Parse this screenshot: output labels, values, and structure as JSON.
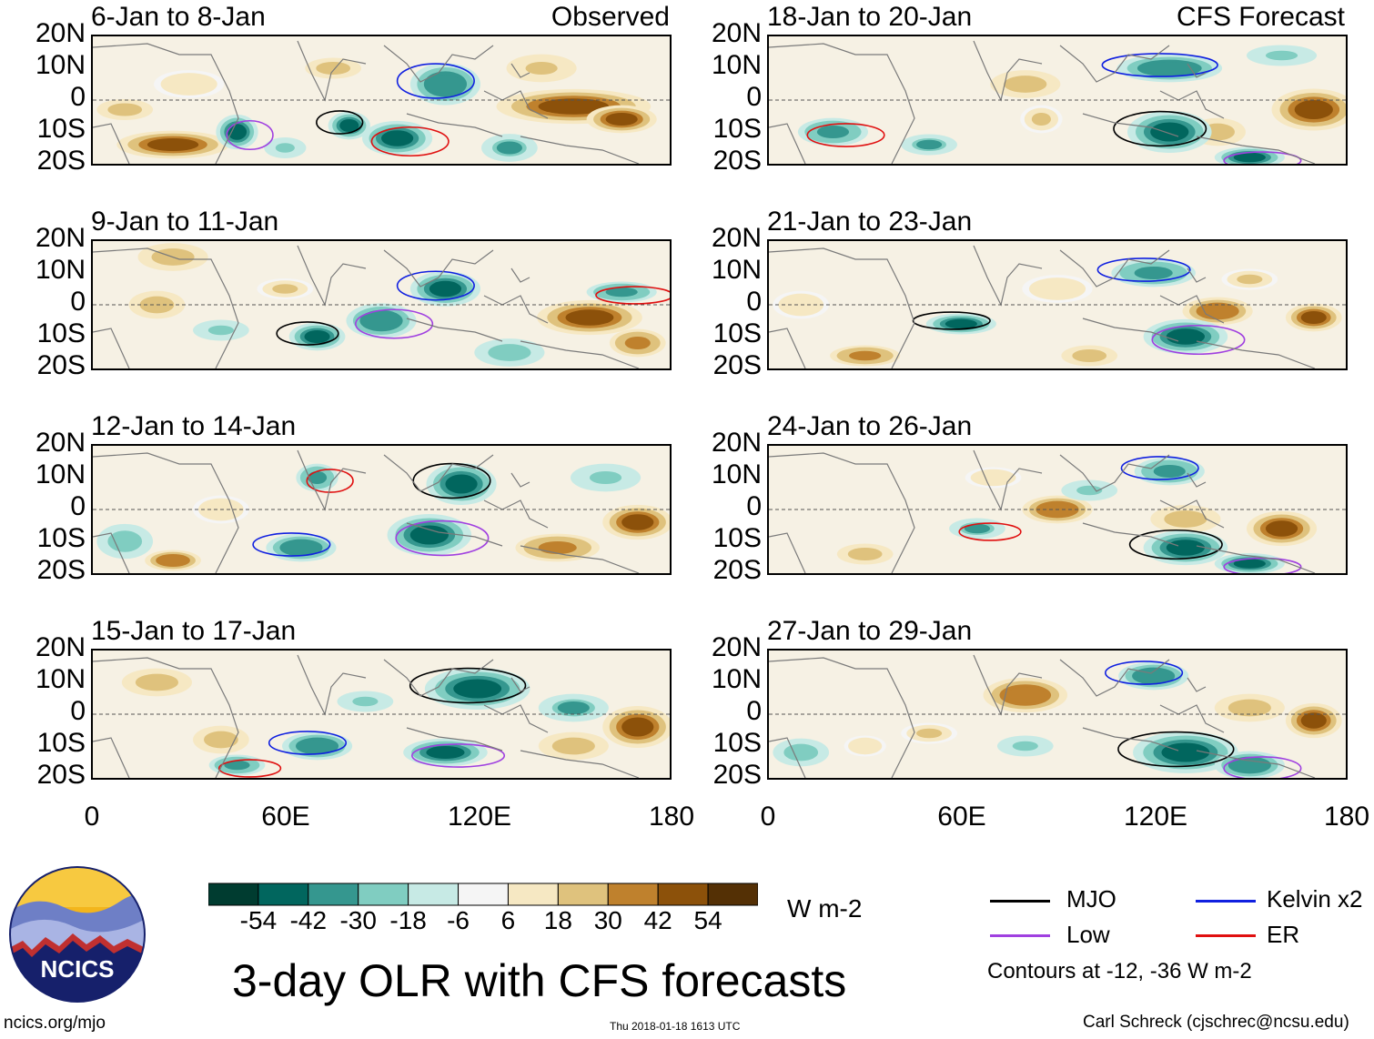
{
  "colors": {
    "mjo": "#000000",
    "low": "#a040e0",
    "kelvin": "#1020e0",
    "er": "#e01010",
    "scale": [
      "#003c30",
      "#01665e",
      "#35978f",
      "#80cdc1",
      "#c7eae5",
      "#f5f5f5",
      "#f6e8c3",
      "#dfc27d",
      "#bf812d",
      "#8c510a",
      "#543005"
    ]
  },
  "chart_data": {
    "type": "heatmap",
    "title": "3-day OLR with CFS forecasts",
    "units": "W m-2",
    "contour_note": "Contours at -12, -36 W m-2",
    "lat_ticks": [
      "20N",
      "10N",
      "0",
      "10S",
      "20S"
    ],
    "lon_ticks": [
      "0",
      "60E",
      "120E",
      "180"
    ],
    "lon_range": [
      0,
      180
    ],
    "lat_range": [
      -20,
      20
    ],
    "colorbar_labels": [
      "-54",
      "-42",
      "-30",
      "-18",
      "-6",
      "6",
      "18",
      "30",
      "42",
      "54"
    ],
    "legend": [
      {
        "name": "MJO",
        "color": "#000000"
      },
      {
        "name": "Kelvin x2",
        "color": "#1020e0"
      },
      {
        "name": "Low",
        "color": "#a040e0"
      },
      {
        "name": "ER",
        "color": "#e01010"
      }
    ],
    "panels": [
      {
        "period": "6-Jan to 8-Jan",
        "tag": "Observed",
        "column": "left",
        "blobs": [
          [
            25,
            -14,
            16,
            4,
            50
          ],
          [
            10,
            -3,
            8,
            3,
            30
          ],
          [
            75,
            10,
            8,
            3,
            25
          ],
          [
            150,
            -2,
            22,
            5,
            48
          ],
          [
            165,
            -6,
            10,
            4,
            50
          ],
          [
            80,
            -8,
            6,
            4,
            -50
          ],
          [
            45,
            -10,
            6,
            5,
            -45
          ],
          [
            110,
            5,
            10,
            6,
            -40
          ],
          [
            95,
            -12,
            10,
            5,
            -45
          ],
          [
            130,
            -15,
            8,
            4,
            -30
          ],
          [
            60,
            -15,
            6,
            3,
            -20
          ],
          [
            30,
            5,
            10,
            4,
            18
          ],
          [
            140,
            10,
            10,
            4,
            22
          ]
        ]
      },
      {
        "period": "18-Jan to 20-Jan",
        "tag": "CFS Forecast",
        "column": "right",
        "blobs": [
          [
            170,
            -3,
            12,
            6,
            48
          ],
          [
            80,
            5,
            10,
            4,
            30
          ],
          [
            140,
            -10,
            8,
            4,
            30
          ],
          [
            125,
            -10,
            12,
            6,
            -50
          ],
          [
            150,
            -18,
            10,
            3,
            -45
          ],
          [
            125,
            10,
            15,
            4,
            -40
          ],
          [
            20,
            -10,
            10,
            4,
            -35
          ],
          [
            50,
            -14,
            8,
            3,
            -30
          ],
          [
            85,
            -6,
            6,
            4,
            20
          ],
          [
            160,
            14,
            10,
            3,
            -20
          ]
        ]
      },
      {
        "period": "9-Jan to 11-Jan",
        "tag": "",
        "column": "left",
        "blobs": [
          [
            155,
            -4,
            15,
            5,
            45
          ],
          [
            170,
            -12,
            8,
            4,
            35
          ],
          [
            20,
            0,
            8,
            4,
            25
          ],
          [
            25,
            15,
            10,
            4,
            30
          ],
          [
            70,
            -10,
            8,
            4,
            -45
          ],
          [
            90,
            -5,
            10,
            5,
            -40
          ],
          [
            110,
            5,
            10,
            5,
            -45
          ],
          [
            165,
            4,
            10,
            3,
            -35
          ],
          [
            60,
            5,
            8,
            3,
            20
          ],
          [
            130,
            -15,
            10,
            4,
            -25
          ],
          [
            40,
            -8,
            8,
            3,
            -20
          ]
        ]
      },
      {
        "period": "21-Jan to 23-Jan",
        "tag": "",
        "column": "right",
        "blobs": [
          [
            140,
            -2,
            10,
            4,
            40
          ],
          [
            170,
            -4,
            8,
            4,
            45
          ],
          [
            30,
            -16,
            10,
            3,
            35
          ],
          [
            100,
            -16,
            8,
            3,
            30
          ],
          [
            60,
            -6,
            10,
            3,
            -48
          ],
          [
            130,
            -10,
            12,
            5,
            -50
          ],
          [
            120,
            10,
            12,
            4,
            -35
          ],
          [
            150,
            8,
            8,
            3,
            20
          ],
          [
            10,
            0,
            8,
            4,
            18
          ],
          [
            90,
            5,
            10,
            4,
            15
          ]
        ]
      },
      {
        "period": "12-Jan to 14-Jan",
        "tag": "",
        "column": "left",
        "blobs": [
          [
            170,
            -4,
            10,
            5,
            45
          ],
          [
            145,
            -12,
            12,
            4,
            35
          ],
          [
            25,
            -16,
            8,
            3,
            40
          ],
          [
            115,
            8,
            10,
            6,
            -50
          ],
          [
            105,
            -8,
            12,
            6,
            -45
          ],
          [
            65,
            -12,
            10,
            4,
            -40
          ],
          [
            70,
            10,
            6,
            4,
            -35
          ],
          [
            10,
            -10,
            8,
            5,
            -25
          ],
          [
            40,
            0,
            8,
            4,
            18
          ],
          [
            160,
            10,
            10,
            4,
            -20
          ]
        ]
      },
      {
        "period": "24-Jan to 26-Jan",
        "tag": "",
        "column": "right",
        "blobs": [
          [
            90,
            0,
            10,
            4,
            40
          ],
          [
            160,
            -6,
            10,
            5,
            45
          ],
          [
            130,
            -3,
            10,
            4,
            30
          ],
          [
            30,
            -14,
            8,
            3,
            25
          ],
          [
            70,
            10,
            8,
            3,
            15
          ],
          [
            130,
            -12,
            12,
            5,
            -50
          ],
          [
            150,
            -17,
            10,
            3,
            -45
          ],
          [
            125,
            12,
            10,
            4,
            -35
          ],
          [
            65,
            -6,
            8,
            3,
            -30
          ],
          [
            100,
            6,
            8,
            3,
            -20
          ]
        ]
      },
      {
        "period": "15-Jan to 17-Jan",
        "tag": "",
        "column": "left",
        "blobs": [
          [
            170,
            -4,
            10,
            6,
            50
          ],
          [
            150,
            -10,
            10,
            4,
            30
          ],
          [
            20,
            10,
            10,
            4,
            30
          ],
          [
            40,
            -8,
            8,
            4,
            25
          ],
          [
            120,
            8,
            15,
            6,
            -50
          ],
          [
            110,
            -12,
            12,
            4,
            -45
          ],
          [
            70,
            -10,
            10,
            4,
            -40
          ],
          [
            45,
            -16,
            8,
            3,
            -35
          ],
          [
            150,
            2,
            10,
            4,
            -30
          ],
          [
            85,
            4,
            8,
            3,
            -20
          ]
        ]
      },
      {
        "period": "27-Jan to 29-Jan",
        "tag": "",
        "column": "right",
        "blobs": [
          [
            80,
            6,
            12,
            5,
            40
          ],
          [
            170,
            -2,
            8,
            5,
            45
          ],
          [
            150,
            2,
            10,
            4,
            25
          ],
          [
            50,
            -6,
            8,
            3,
            20
          ],
          [
            130,
            -12,
            15,
            6,
            -50
          ],
          [
            150,
            -16,
            10,
            4,
            -40
          ],
          [
            120,
            12,
            10,
            4,
            -40
          ],
          [
            10,
            -12,
            8,
            4,
            -25
          ],
          [
            80,
            -10,
            8,
            3,
            -20
          ],
          [
            30,
            -10,
            6,
            3,
            15
          ]
        ]
      }
    ]
  },
  "footer": {
    "logo_text": "NCICS",
    "url": "ncics.org/mjo",
    "timestamp": "Thu 2018-01-18 1613 UTC",
    "author": "Carl Schreck (cjschrec@ncsu.edu)"
  }
}
